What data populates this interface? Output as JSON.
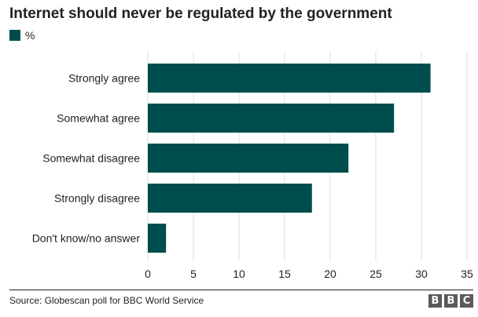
{
  "header": {
    "title": "Internet should never be regulated by the government"
  },
  "legend": {
    "label": "%"
  },
  "footer": {
    "source": "Source: Globescan poll for BBC World Service",
    "logo_letters": [
      "B",
      "B",
      "C"
    ]
  },
  "colors": {
    "bar": "#004d4d",
    "grid": "#dddddd",
    "text": "#222222",
    "logo": "#5a5a5a"
  },
  "chart_data": {
    "type": "bar",
    "orientation": "horizontal",
    "title": "Internet should never be regulated by the government",
    "xlabel": "",
    "ylabel": "",
    "categories": [
      "Strongly agree",
      "Somewhat agree",
      "Somewhat disagree",
      "Strongly disagree",
      "Don't know/no answer"
    ],
    "series": [
      {
        "name": "%",
        "values": [
          31,
          27,
          22,
          18,
          2
        ]
      }
    ],
    "xlim": [
      0,
      35
    ],
    "xticks": [
      0,
      5,
      10,
      15,
      20,
      25,
      30,
      35
    ],
    "grid": true,
    "legend_position": "top-left"
  }
}
